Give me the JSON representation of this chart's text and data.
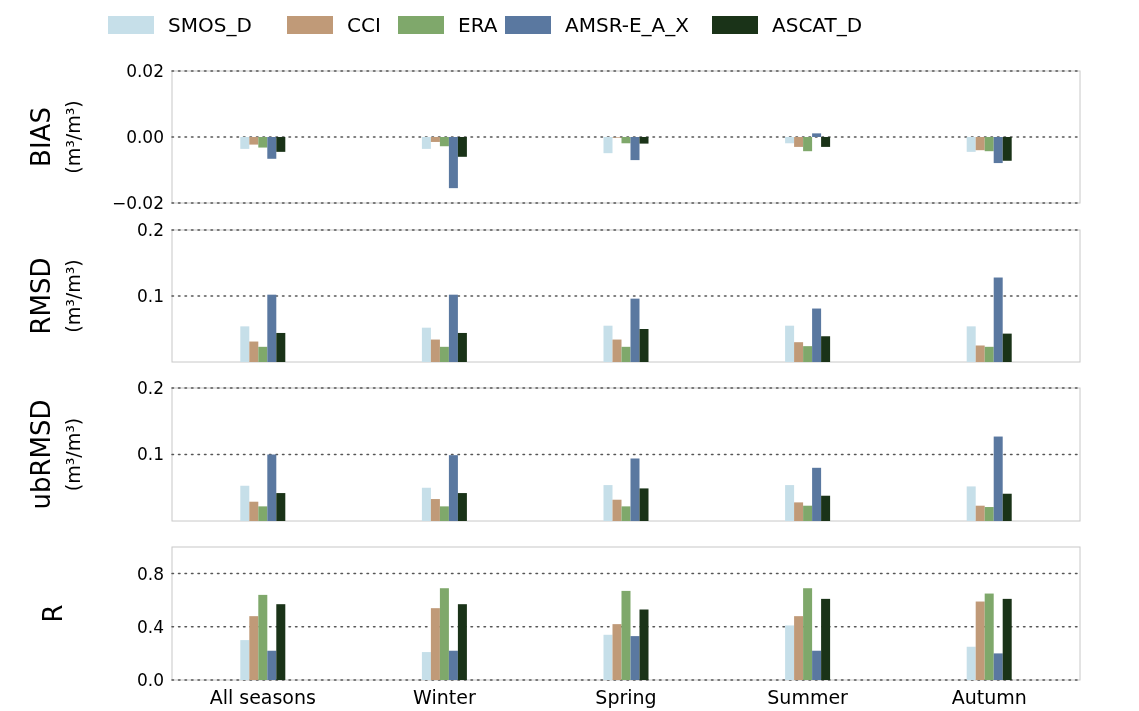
{
  "chart_data": [
    {
      "type": "bar",
      "ylabel": "BIAS\n(m³/m³)",
      "ylim": [
        -0.02,
        0.02
      ],
      "yticks": [
        {
          "value": -0.02,
          "label": "−0.02"
        },
        {
          "value": 0,
          "label": "0.00"
        },
        {
          "value": 0.02,
          "label": "0.02"
        }
      ],
      "grid": "y",
      "legend": "top",
      "tick_labels": "y",
      "series": [
        {
          "name": "SMOS_D",
          "color": "#c6dfe9",
          "values": [
            -0.0036,
            -0.0036,
            -0.0049,
            -0.0019,
            -0.0045
          ]
        },
        {
          "name": "CCI",
          "color": "#c09a78",
          "values": [
            -0.0023,
            -0.0015,
            -0.0002,
            -0.003,
            -0.004
          ]
        },
        {
          "name": "ERA",
          "color": "#7fa86b",
          "values": [
            -0.0032,
            -0.0028,
            -0.0019,
            -0.0043,
            -0.0043
          ]
        },
        {
          "name": "AMSR-E_A_X",
          "color": "#5a78a0",
          "values": [
            -0.0066,
            -0.0155,
            -0.007,
            0.0011,
            -0.0079
          ]
        },
        {
          "name": "ASCAT_D",
          "color": "#1a3318",
          "values": [
            -0.0045,
            -0.006,
            -0.002,
            -0.003,
            -0.0072
          ]
        }
      ]
    },
    {
      "type": "bar",
      "ylabel": "RMSD\n(m³/m³)",
      "ylim": [
        0,
        0.2
      ],
      "yticks": [
        0.1,
        0.2
      ],
      "grid": "y",
      "tick_labels": "y",
      "series": [
        {
          "color": "#c6dfe9",
          "values": [
            0.054,
            0.052,
            0.055,
            0.055,
            0.054
          ]
        },
        {
          "color": "#c09a78",
          "values": [
            0.031,
            0.034,
            0.034,
            0.03,
            0.025
          ]
        },
        {
          "color": "#7fa86b",
          "values": [
            0.023,
            0.023,
            0.023,
            0.024,
            0.023
          ]
        },
        {
          "color": "#5a78a0",
          "values": [
            0.102,
            0.102,
            0.096,
            0.081,
            0.128
          ]
        },
        {
          "color": "#1a3318",
          "values": [
            0.044,
            0.044,
            0.05,
            0.039,
            0.043
          ]
        }
      ]
    },
    {
      "type": "bar",
      "ylabel": "ubRMSD\n(m³/m³)",
      "ylim": [
        0,
        0.2
      ],
      "yticks": [
        0.1,
        0.2
      ],
      "grid": "y",
      "tick_labels": "y",
      "series": [
        {
          "color": "#c6dfe9",
          "values": [
            0.053,
            0.05,
            0.054,
            0.054,
            0.052
          ]
        },
        {
          "color": "#c09a78",
          "values": [
            0.029,
            0.033,
            0.032,
            0.028,
            0.023
          ]
        },
        {
          "color": "#7fa86b",
          "values": [
            0.022,
            0.022,
            0.022,
            0.023,
            0.021
          ]
        },
        {
          "color": "#5a78a0",
          "values": [
            0.1,
            0.099,
            0.094,
            0.08,
            0.127
          ]
        },
        {
          "color": "#1a3318",
          "values": [
            0.042,
            0.042,
            0.049,
            0.038,
            0.041
          ]
        }
      ]
    },
    {
      "type": "bar",
      "ylabel": "R",
      "categories": [
        "All seasons",
        "Winter",
        "Spring",
        "Summer",
        "Autumn"
      ],
      "ylim": [
        0,
        1.0
      ],
      "yticks": [
        {
          "value": 0,
          "label": "0.0"
        },
        0.4,
        0.8
      ],
      "grid": "y",
      "series": [
        {
          "color": "#c6dfe9",
          "values": [
            0.3,
            0.21,
            0.34,
            0.41,
            0.25
          ]
        },
        {
          "color": "#c09a78",
          "values": [
            0.48,
            0.54,
            0.42,
            0.48,
            0.59
          ]
        },
        {
          "color": "#7fa86b",
          "values": [
            0.64,
            0.69,
            0.67,
            0.69,
            0.65
          ]
        },
        {
          "color": "#5a78a0",
          "values": [
            0.22,
            0.22,
            0.33,
            0.22,
            0.2
          ]
        },
        {
          "color": "#1a3318",
          "values": [
            0.57,
            0.57,
            0.53,
            0.61,
            0.61
          ]
        }
      ]
    }
  ]
}
